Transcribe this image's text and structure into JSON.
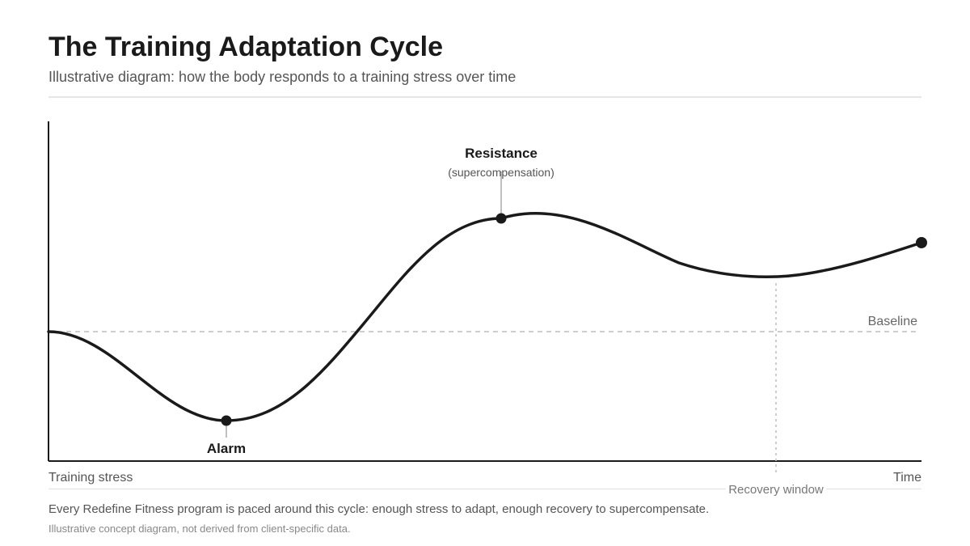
{
  "header": {
    "title": "The Training Adaptation Cycle",
    "subtitle": "Illustrative diagram: how the body responds to a training stress over time"
  },
  "diagram": {
    "phases": {
      "alarm": {
        "label": "Alarm"
      },
      "resistance": {
        "label": "Resistance",
        "sublabel": "(supercompensation)"
      }
    },
    "baseline_label": "Baseline",
    "recovery_label": "Recovery window",
    "x_axis": {
      "start_label": "Training stress",
      "end_label": "Time"
    },
    "colors": {
      "curve": "#1a1a1a",
      "guide": "#bdbdbd",
      "muted": "#666666"
    }
  },
  "footer": {
    "note": "Every Redefine Fitness program is paced around this cycle: enough stress to adapt, enough recovery to supercompensate.",
    "disclaimer": "Illustrative concept diagram, not derived from client-specific data."
  }
}
